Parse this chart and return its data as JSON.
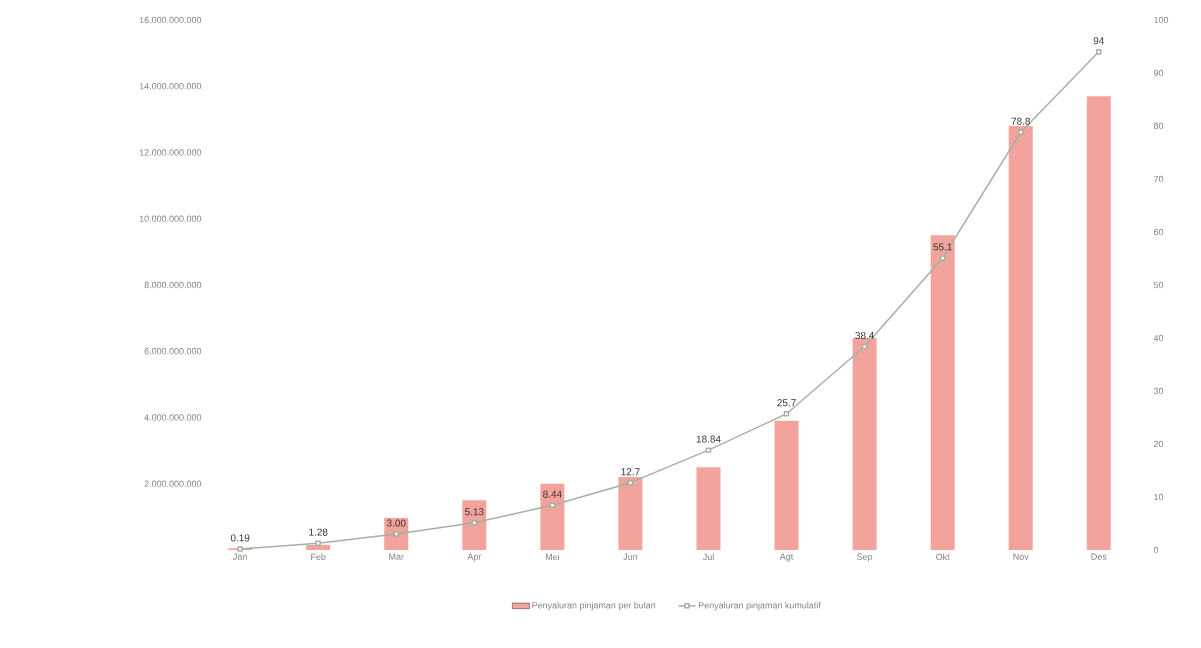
{
  "chart_data": {
    "type": "bar",
    "categories": [
      "Jan",
      "Feb",
      "Mar",
      "Apr",
      "Mei",
      "Jun",
      "Jul",
      "Agt",
      "Sep",
      "Okt",
      "Nov",
      "Des"
    ],
    "series": [
      {
        "name": "Penyaluran pinjaman per bulan",
        "color": "#f2a39b",
        "values": [
          50000000,
          150000000,
          970000000,
          1500000000,
          2000000000,
          2200000000,
          2500000000,
          3900000000,
          6400000000,
          9500000000,
          12800000000,
          13700000000
        ]
      },
      {
        "name": "Penyaluran pinjaman kumulatif",
        "type": "line",
        "axis": "y2",
        "color": "#a3b2a3",
        "marker": "square",
        "values": [
          0.19,
          1.28,
          3.0,
          5.13,
          8.44,
          12.7,
          18.84,
          25.7,
          38.4,
          55.1,
          78.8,
          94
        ],
        "value_labels": [
          "0.19",
          "1.28",
          "3.00",
          "5.13",
          "8.44",
          "12.7",
          "18.84",
          "25.7",
          "38.4",
          "55.1",
          "78.8",
          "94"
        ]
      }
    ],
    "ylim": [
      0,
      16000000000
    ],
    "yticks": [
      {
        "value": 2000000000,
        "label": "2.000.000.000"
      },
      {
        "value": 4000000000,
        "label": "4.000.000.000"
      },
      {
        "value": 6000000000,
        "label": "6.000.000.000"
      },
      {
        "value": 8000000000,
        "label": "8.000.000.000"
      },
      {
        "value": 10000000000,
        "label": "10.000.000.000"
      },
      {
        "value": 12000000000,
        "label": "12.000.000.000"
      },
      {
        "value": 14000000000,
        "label": "14.000.000.000"
      },
      {
        "value": 16000000000,
        "label": "16.000.000.000"
      }
    ],
    "y2lim": [
      0,
      100
    ],
    "y2ticks": [
      0,
      10,
      20,
      30,
      40,
      50,
      60,
      70,
      80,
      90,
      100
    ],
    "legend": "bottom"
  }
}
